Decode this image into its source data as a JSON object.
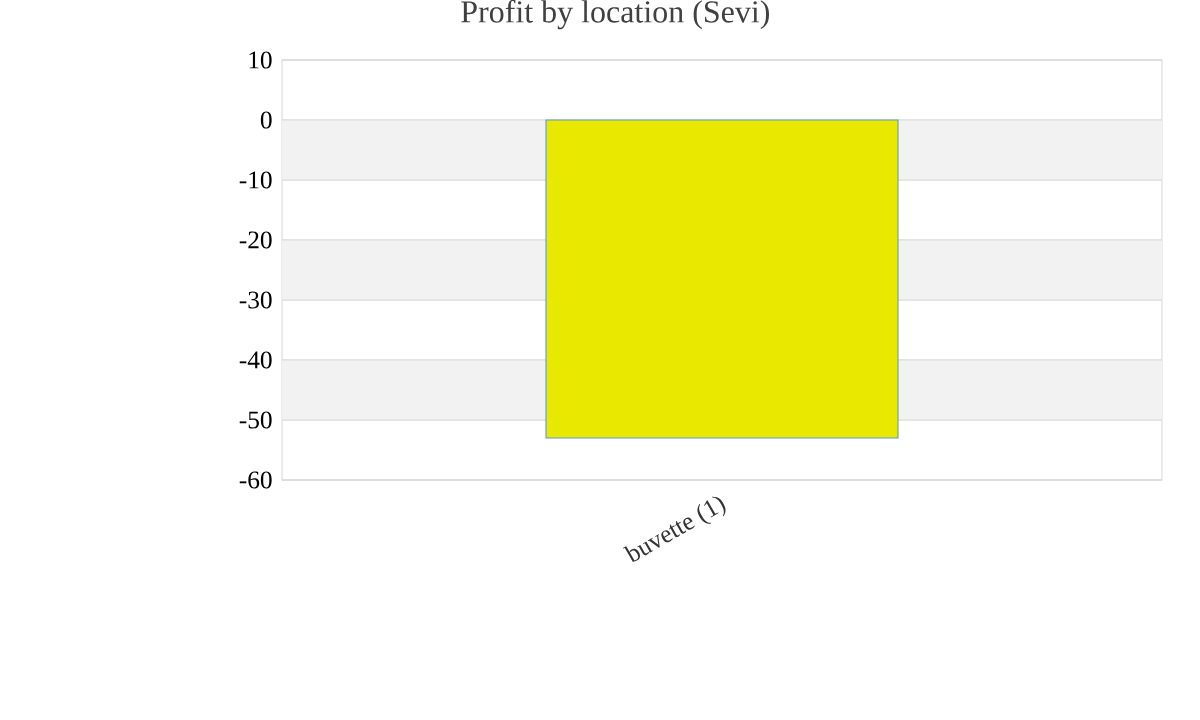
{
  "chart_data": {
    "type": "bar",
    "title": "Profit by location  (Sevi)",
    "categories": [
      "buvette (1)"
    ],
    "values": [
      -53
    ],
    "color": "#e8e800",
    "ylim": [
      -60,
      10
    ],
    "yticks": [
      -60,
      -50,
      -40,
      -30,
      -20,
      -10,
      0,
      10
    ],
    "grid": "y"
  }
}
